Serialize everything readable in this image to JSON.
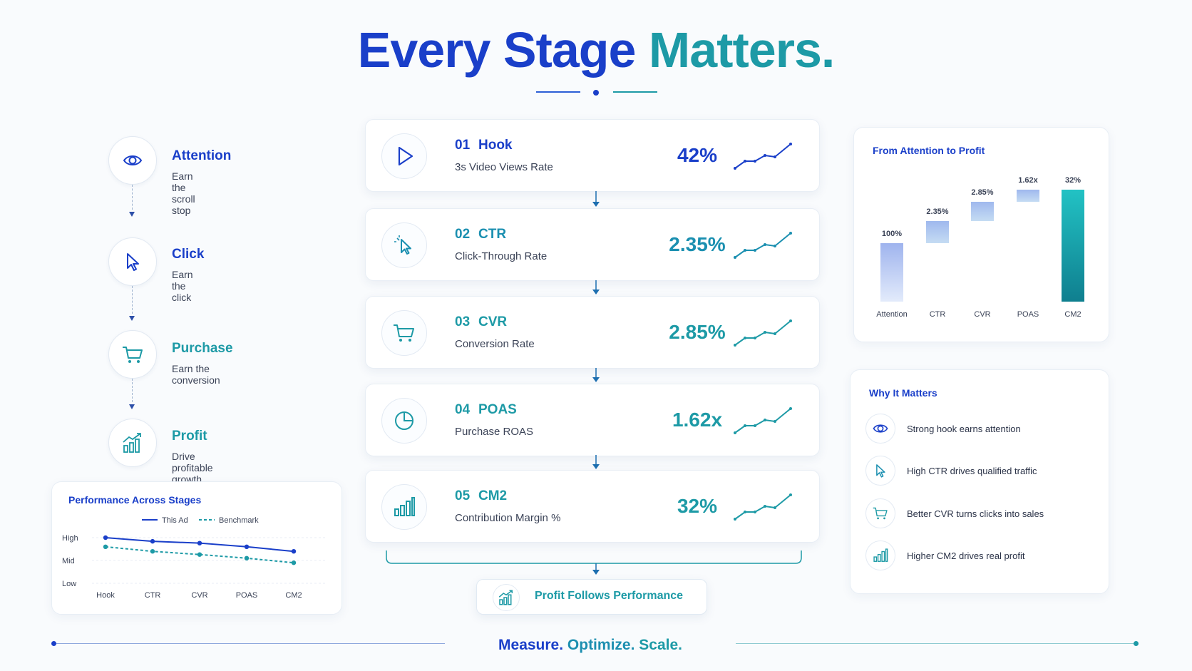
{
  "title": {
    "part1": "Every Stage",
    "part2": "Matters."
  },
  "stages": [
    {
      "icon": "eye-icon",
      "title": "Attention",
      "subtitle": "Earn the scroll stop",
      "color": "#1a3fc9"
    },
    {
      "icon": "cursor-icon",
      "title": "Click",
      "subtitle": "Earn the click",
      "color": "#1a3fc9"
    },
    {
      "icon": "cart-icon",
      "title": "Purchase",
      "subtitle": "Earn the conversion",
      "color": "#1d9aa6"
    },
    {
      "icon": "growth-chart-icon",
      "title": "Profit",
      "subtitle": "Drive profitable growth",
      "color": "#1d9aa6"
    }
  ],
  "metrics": [
    {
      "num": "01",
      "name": "Hook",
      "subtitle": "3s Video Views Rate",
      "value": "42%",
      "icon": "play-icon",
      "color": "#1a3fc9"
    },
    {
      "num": "02",
      "name": "CTR",
      "subtitle": "Click-Through Rate",
      "value": "2.35%",
      "icon": "cursor-icon",
      "color": "#1a8fb0"
    },
    {
      "num": "03",
      "name": "CVR",
      "subtitle": "Conversion Rate",
      "value": "2.85%",
      "icon": "cart-icon",
      "color": "#1d9aa6"
    },
    {
      "num": "04",
      "name": "POAS",
      "subtitle": "Purchase ROAS",
      "value": "1.62x",
      "icon": "pie-chart-icon",
      "color": "#1d9aa6"
    },
    {
      "num": "05",
      "name": "CM2",
      "subtitle": "Contribution Margin %",
      "value": "32%",
      "icon": "bar-chart-icon",
      "color": "#1d9aa6"
    }
  ],
  "profit_box": {
    "label": "Profit Follows Performance",
    "icon": "growth-chart-icon"
  },
  "footer": {
    "part1": "Measure.",
    "part2": "Optimize.",
    "part3": "Scale."
  },
  "colors": {
    "blue": "#1a3fc9",
    "teal": "#1d9aa6"
  },
  "chart_data": [
    {
      "type": "bar",
      "title": "From Attention to Profit",
      "categories": [
        "Attention",
        "CTR",
        "CVR",
        "POAS",
        "CM2"
      ],
      "data_labels": [
        "100%",
        "2.35%",
        "2.85%",
        "1.62x",
        "32%"
      ],
      "note": "waterfall-style bars",
      "grid": false,
      "legend": "none"
    },
    {
      "type": "line",
      "title": "Performance Across Stages",
      "categories": [
        "Hook",
        "CTR",
        "CVR",
        "POAS",
        "CM2"
      ],
      "y_tick_labels": [
        "High",
        "Mid",
        "Low"
      ],
      "ylim": [
        0,
        2
      ],
      "series": [
        {
          "name": "This Ad",
          "values": [
            2.0,
            1.84,
            1.76,
            1.6,
            1.4
          ],
          "color": "#1a3fc9",
          "style": "solid"
        },
        {
          "name": "Benchmark",
          "values": [
            1.6,
            1.4,
            1.26,
            1.1,
            0.9
          ],
          "color": "#1d9aa6",
          "style": "dashed"
        }
      ],
      "grid": true,
      "legend": "top"
    }
  ],
  "why": {
    "title": "Why It Matters",
    "items": [
      {
        "icon": "eye-icon",
        "text": "Strong hook earns attention"
      },
      {
        "icon": "cursor-icon",
        "text": "High CTR drives qualified traffic"
      },
      {
        "icon": "cart-icon",
        "text": "Better CVR turns clicks into sales"
      },
      {
        "icon": "bar-chart-icon",
        "text": "Higher CM2 drives real profit"
      }
    ]
  }
}
